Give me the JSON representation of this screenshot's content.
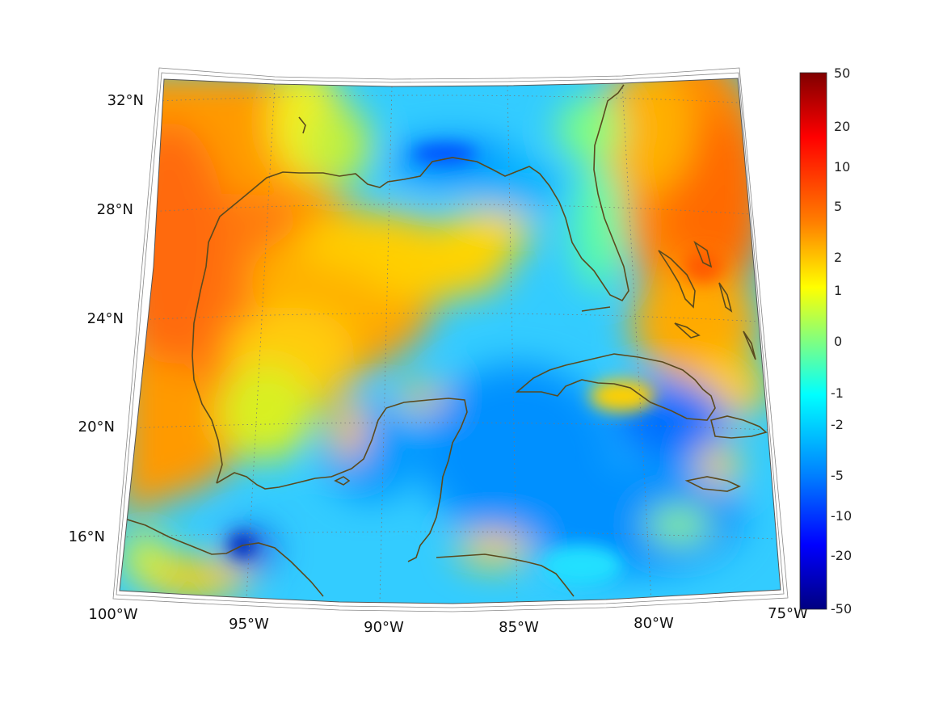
{
  "map": {
    "projection": "conic",
    "lon_range": [
      "100°W",
      "75°W"
    ],
    "lat_range": [
      "~14°N",
      "~33°N"
    ],
    "lon_labels": [
      "100°W",
      "95°W",
      "90°W",
      "85°W",
      "80°W",
      "75°W"
    ],
    "lat_labels": [
      "16°N",
      "20°N",
      "24°N",
      "28°N",
      "32°N"
    ],
    "coastline_color": "#5a4a1e",
    "gridline_style": "dotted",
    "frame_color": "#555555"
  },
  "colorbar": {
    "colormap": "jet",
    "tick_labels": [
      "50",
      "20",
      "10",
      "5",
      "2",
      "1",
      "0",
      "-1",
      "-2",
      "-5",
      "-10",
      "-20",
      "-50"
    ],
    "colors": [
      "#800000",
      "#ff0000",
      "#ff8000",
      "#ffff00",
      "#00ffff",
      "#0080ff",
      "#0000ff",
      "#000080"
    ]
  }
}
